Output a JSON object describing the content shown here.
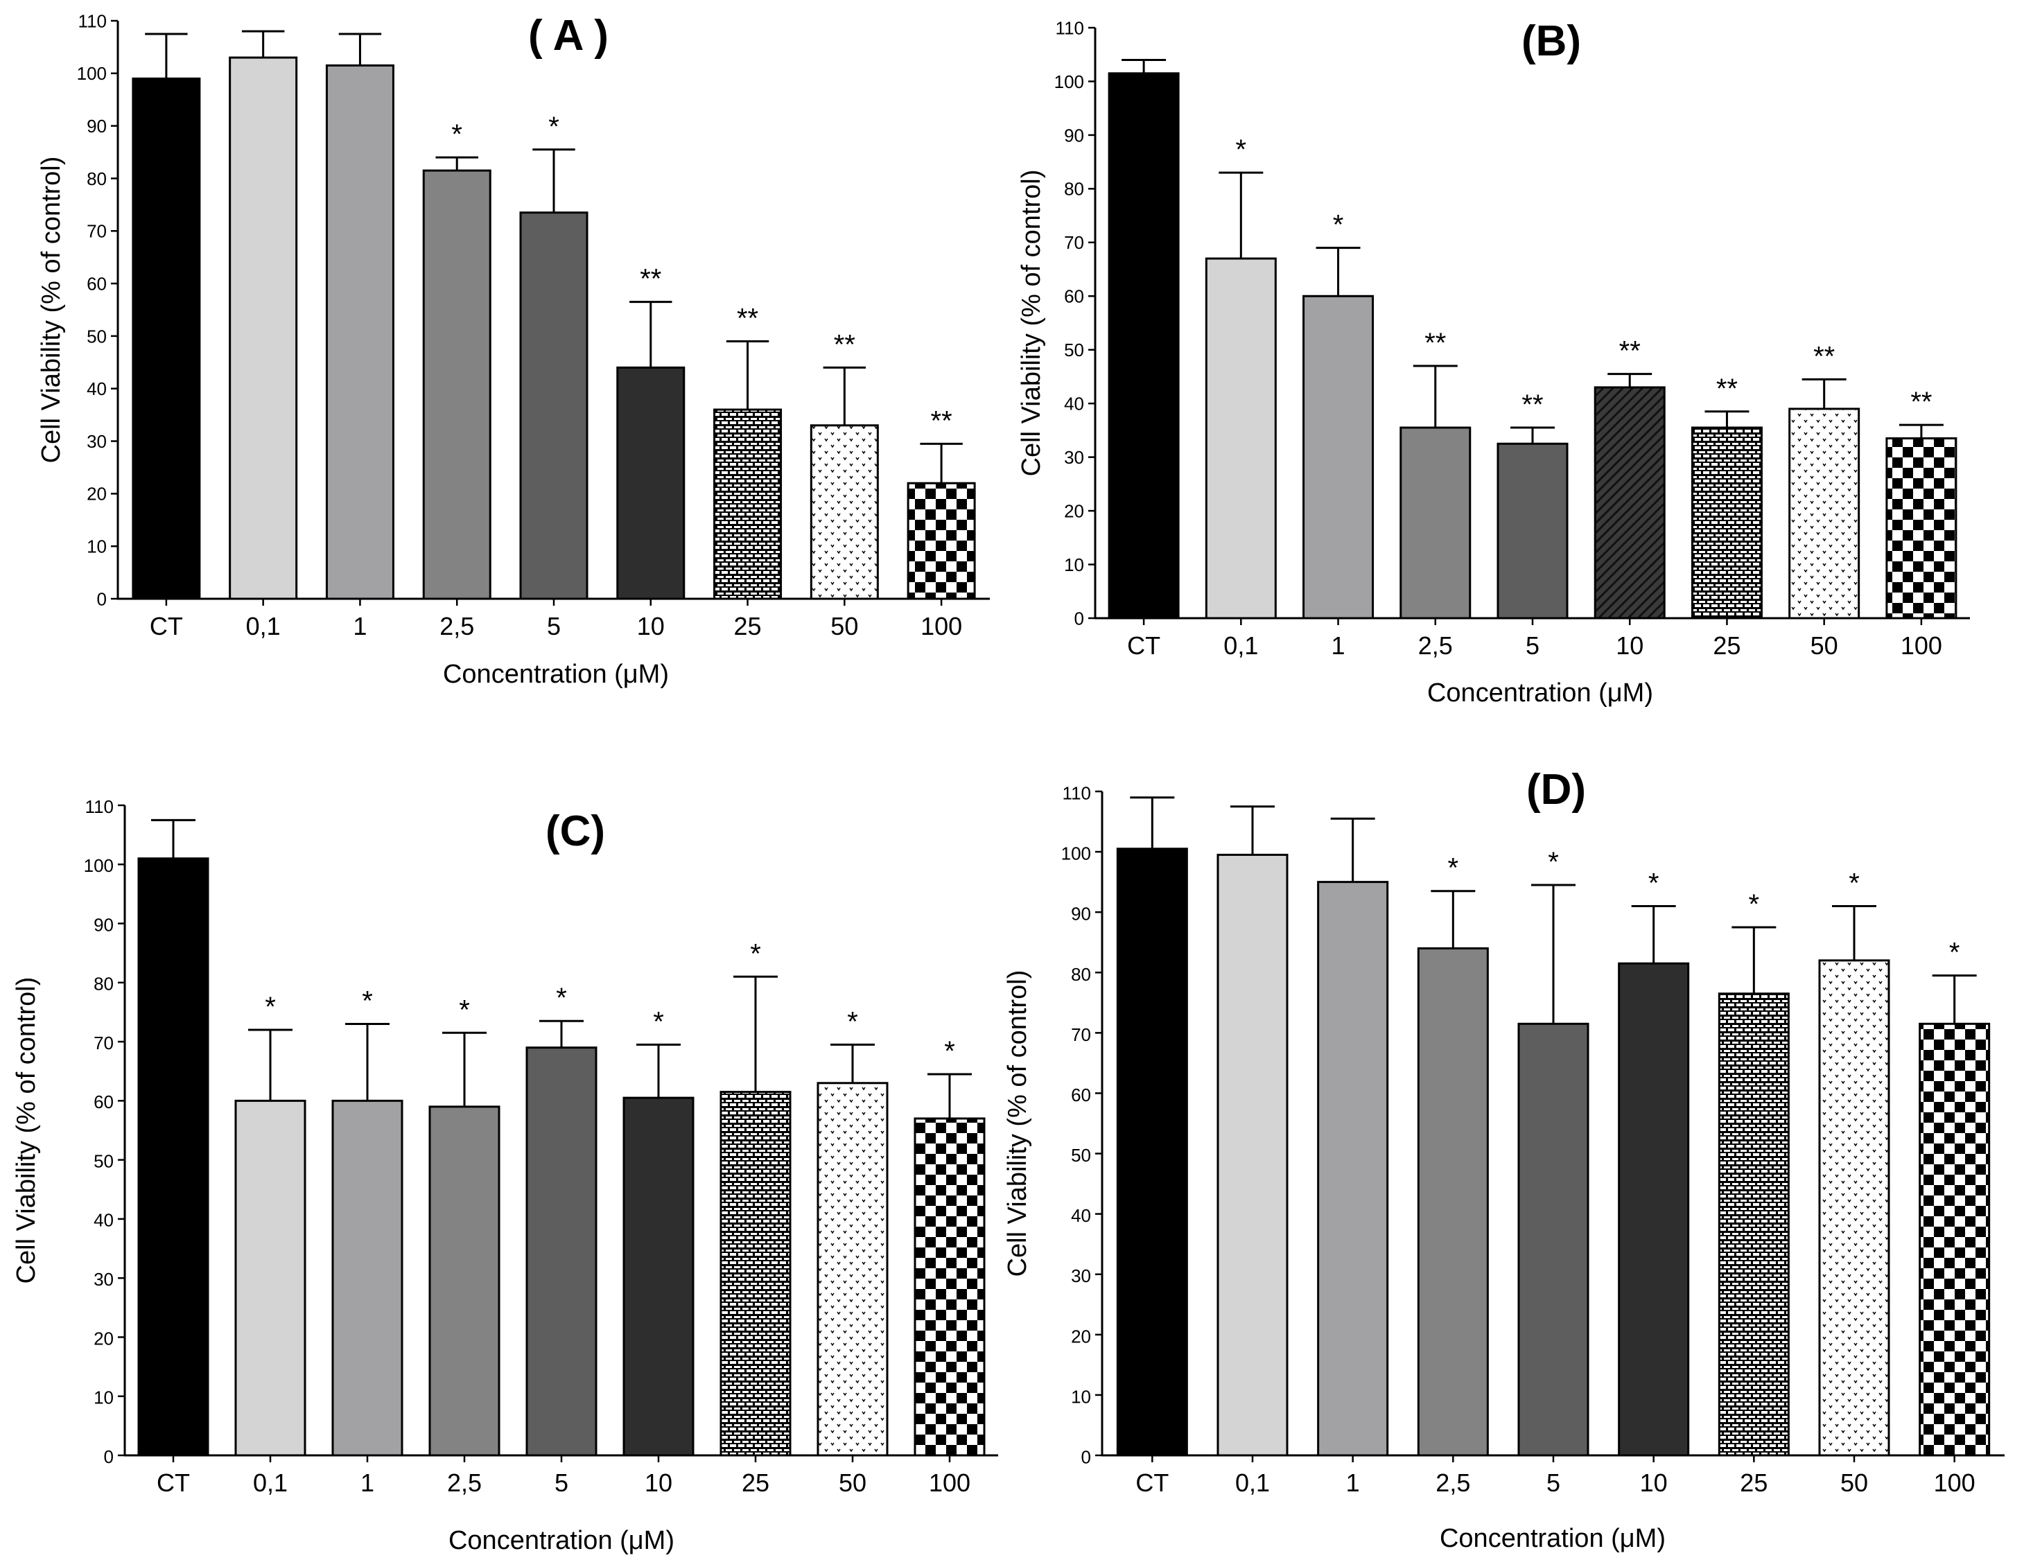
{
  "figure": {
    "panels": [
      "A",
      "B",
      "C",
      "D"
    ]
  },
  "styles": {
    "CT": "#000000",
    "0,1": "#d4d4d4",
    "1": "#a2a2a4",
    "2,5": "#838383",
    "5": "#5e5e5e",
    "10": "#2e2e2e",
    "25": "brick",
    "50": "dots",
    "100": "checker"
  },
  "chart_data": [
    {
      "type": "bar",
      "title": "( A )",
      "xlabel": "Concentration (μM)",
      "ylabel": "Cell Viability (% of control)",
      "ylim": [
        0,
        110
      ],
      "yticks": [
        "0",
        "10",
        "20",
        "30",
        "40",
        "50",
        "60",
        "70",
        "80",
        "90",
        "100",
        "110"
      ],
      "categories": [
        "CT",
        "0,1",
        "1",
        "2,5",
        "5",
        "10",
        "25",
        "50",
        "100"
      ],
      "values": [
        99,
        103,
        101.5,
        81.5,
        73.5,
        44,
        36,
        33,
        22
      ],
      "errors": [
        8.5,
        5,
        6,
        2.5,
        12,
        12.5,
        13,
        11,
        7.5
      ],
      "significance": [
        "",
        "",
        "",
        "*",
        "*",
        "**",
        "**",
        "**",
        "**"
      ],
      "bar_10_hatched": false
    },
    {
      "type": "bar",
      "title": "(B)",
      "xlabel": "Concentration (μM)",
      "ylabel": "Cell Viability (% of control)",
      "ylim": [
        0,
        110
      ],
      "yticks": [
        "0",
        "10",
        "20",
        "30",
        "40",
        "50",
        "60",
        "70",
        "80",
        "90",
        "100",
        "110"
      ],
      "categories": [
        "CT",
        "0,1",
        "1",
        "2,5",
        "5",
        "10",
        "25",
        "50",
        "100"
      ],
      "values": [
        101.5,
        67,
        60,
        35.5,
        32.5,
        43,
        35.5,
        39,
        33.5
      ],
      "errors": [
        2.5,
        16,
        9,
        11.5,
        3,
        2.5,
        3,
        5.5,
        2.5
      ],
      "significance": [
        "",
        "*",
        "*",
        "**",
        "**",
        "**",
        "**",
        "**",
        "**"
      ],
      "bar_10_hatched": true
    },
    {
      "type": "bar",
      "title": "(C)",
      "xlabel": "Concentration (μM)",
      "ylabel": "Cell Viability (% of control)",
      "ylim": [
        0,
        110
      ],
      "yticks": [
        "0",
        "10",
        "20",
        "30",
        "40",
        "50",
        "60",
        "70",
        "80",
        "90",
        "100",
        "110"
      ],
      "categories": [
        "CT",
        "0,1",
        "1",
        "2,5",
        "5",
        "10",
        "25",
        "50",
        "100"
      ],
      "values": [
        101,
        60,
        60,
        59,
        69,
        60.5,
        61.5,
        63,
        57
      ],
      "errors": [
        6.5,
        12,
        13,
        12.5,
        4.5,
        9,
        19.5,
        6.5,
        7.5
      ],
      "significance": [
        "",
        "*",
        "*",
        "*",
        "*",
        "*",
        "*",
        "*",
        "*"
      ],
      "bar_10_hatched": false
    },
    {
      "type": "bar",
      "title": "(D)",
      "xlabel": "Concentration (μM)",
      "ylabel": "Cell Viability (% of control)",
      "ylim": [
        0,
        110
      ],
      "yticks": [
        "0",
        "10",
        "20",
        "30",
        "40",
        "50",
        "60",
        "70",
        "80",
        "90",
        "100",
        "110"
      ],
      "categories": [
        "CT",
        "0,1",
        "1",
        "2,5",
        "5",
        "10",
        "25",
        "50",
        "100"
      ],
      "values": [
        100.5,
        99.5,
        95,
        84,
        71.5,
        81.5,
        76.5,
        82,
        71.5
      ],
      "errors": [
        8.5,
        8,
        10.5,
        9.5,
        23,
        9.5,
        11,
        9,
        8
      ],
      "significance": [
        "",
        "",
        "",
        "*",
        "*",
        "*",
        "*",
        "*",
        "*"
      ],
      "bar_10_hatched": false
    }
  ]
}
